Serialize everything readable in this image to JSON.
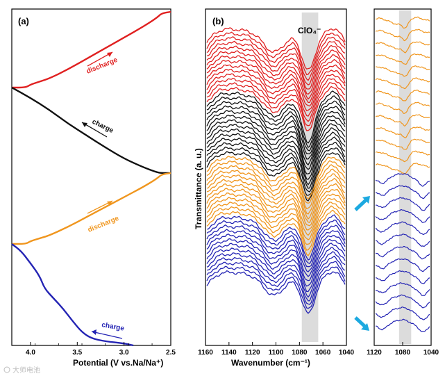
{
  "chart_data": [
    {
      "panel": "(a)",
      "type": "line",
      "xlabel": "Potential (V vs.Na/Na⁺)",
      "xlim": [
        4.2,
        2.5
      ],
      "ticks": [
        4.0,
        3.5,
        3.0,
        2.5
      ],
      "tick_labels": [
        "4.0",
        "3.5",
        "3.0",
        "2.5"
      ],
      "series": [
        {
          "name": "discharge",
          "color": "#e02020",
          "x": [
            4.2,
            4.05,
            4.0,
            3.9,
            3.8,
            3.6,
            3.4,
            3.2,
            3.0,
            2.8,
            2.65,
            2.6,
            2.5
          ],
          "y": [
            0.0,
            0.0,
            0.04,
            0.08,
            0.12,
            0.24,
            0.38,
            0.52,
            0.66,
            0.8,
            0.92,
            0.98,
            1.0
          ]
        },
        {
          "name": "charge",
          "color": "#111111",
          "x": [
            4.2,
            4.0,
            3.8,
            3.6,
            3.4,
            3.2,
            3.0,
            2.8,
            2.65,
            2.6,
            2.5
          ],
          "y": [
            1.0,
            0.88,
            0.74,
            0.58,
            0.44,
            0.3,
            0.17,
            0.07,
            0.01,
            0.0,
            0.0
          ]
        },
        {
          "name": "discharge",
          "color": "#f0961e",
          "x": [
            4.2,
            4.05,
            4.0,
            3.9,
            3.8,
            3.6,
            3.4,
            3.2,
            3.0,
            2.8,
            2.65,
            2.6,
            2.5
          ],
          "y": [
            0.0,
            0.0,
            0.04,
            0.08,
            0.12,
            0.24,
            0.38,
            0.52,
            0.66,
            0.8,
            0.92,
            0.98,
            1.0
          ]
        },
        {
          "name": "charge",
          "color": "#2424b4",
          "x": [
            4.2,
            4.1,
            4.0,
            3.9,
            3.85,
            3.75,
            3.65,
            3.55,
            3.45,
            3.35,
            3.2,
            3.0,
            2.9
          ],
          "y": [
            1.0,
            0.93,
            0.81,
            0.68,
            0.56,
            0.46,
            0.36,
            0.24,
            0.13,
            0.07,
            0.04,
            0.02,
            0.0
          ]
        }
      ],
      "annotations": [
        {
          "text": "discharge",
          "color": "#e02020"
        },
        {
          "text": "charge",
          "color": "#111111"
        },
        {
          "text": "discharge",
          "color": "#f0961e"
        },
        {
          "text": "charge",
          "color": "#2424b4"
        }
      ]
    },
    {
      "panel": "(b)",
      "type": "line",
      "xlabel": "Wavenumber (cm⁻¹)",
      "ylabel": "Transmittance (a. u.)",
      "xlim": [
        1160,
        1040
      ],
      "ticks": [
        1160,
        1140,
        1120,
        1100,
        1080,
        1060,
        1040
      ],
      "tick_labels": [
        "1160",
        "1140",
        "1120",
        "1100",
        "1080",
        "1060",
        "1040"
      ],
      "highlight_band": [
        1078,
        1064
      ],
      "highlight_label": "ClO₄⁻",
      "stacked_spectra": [
        {
          "color": "#e02020",
          "count": 14
        },
        {
          "color": "#111111",
          "count": 14
        },
        {
          "color": "#f0961e",
          "count": 13
        },
        {
          "color": "#2424b4",
          "count": 13
        }
      ]
    },
    {
      "panel": "zoom",
      "type": "line",
      "xlim": [
        1120,
        1040
      ],
      "ticks": [
        1120,
        1080,
        1040
      ],
      "tick_labels": [
        "1120",
        "1080",
        "1040"
      ],
      "highlight_band": [
        1085,
        1068
      ],
      "stacked_spectra": [
        {
          "color": "#f0961e",
          "count": 13
        },
        {
          "color": "#2424b4",
          "count": 13
        }
      ]
    }
  ],
  "watermark": "大师电池"
}
